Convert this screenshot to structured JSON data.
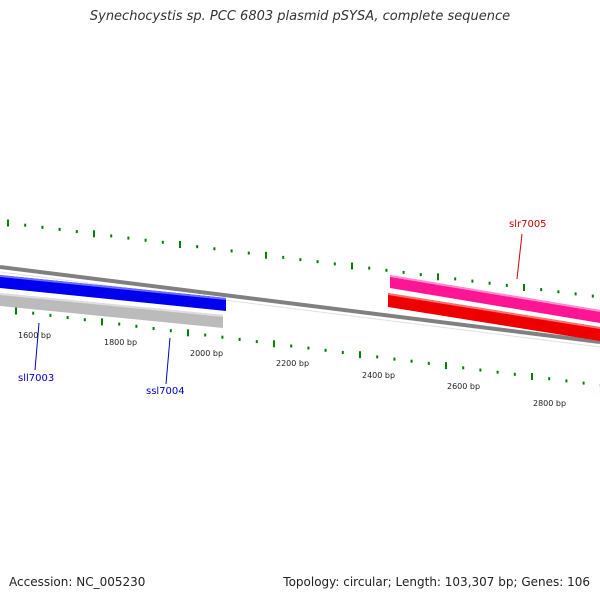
{
  "title": "Synechocystis sp. PCC 6803 plasmid pSYSA, complete sequence",
  "footer": {
    "accession": "Accession: NC_005230",
    "summary": "Topology: circular; Length: 103,307 bp; Genes: 106"
  },
  "colors": {
    "tick": "#008000",
    "backbone": "#808080",
    "sll7003": "#0000ee",
    "ssl7004": "#bbbbbb",
    "slr7005_outer": "#ff1493",
    "slr7005_inner": "#ee0000",
    "label_blue": "#0000cc",
    "label_red": "#cc0000"
  },
  "ruler_labels": [
    "1600 bp",
    "1800 bp",
    "2000 bp",
    "2200 bp",
    "2400 bp",
    "2600 bp",
    "2800 bp"
  ],
  "genes": [
    {
      "name": "sll7003",
      "strand": "minus"
    },
    {
      "name": "ssl7004",
      "strand": "minus"
    },
    {
      "name": "slr7005",
      "strand": "plus"
    }
  ]
}
